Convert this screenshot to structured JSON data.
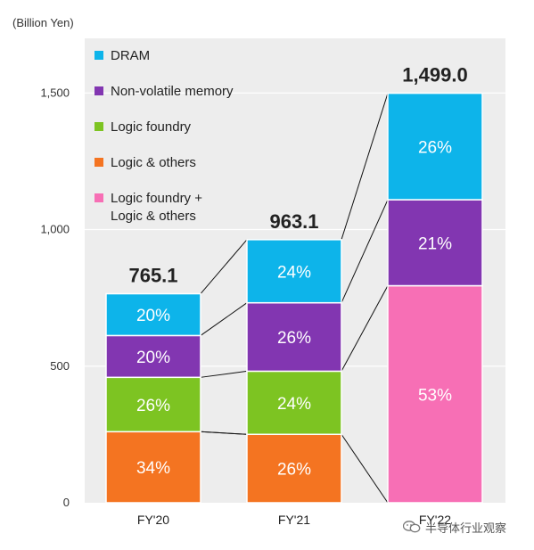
{
  "chart_data": {
    "type": "bar",
    "stacked": true,
    "unit_label": "(Billion Yen)",
    "categories": [
      "FY'20",
      "FY'21",
      "FY'22"
    ],
    "totals": [
      765.1,
      963.1,
      1499.0
    ],
    "total_labels": [
      "765.1",
      "963.1",
      "1,499.0"
    ],
    "ylim": [
      0,
      1700
    ],
    "yticks": [
      0,
      500,
      1000,
      1500
    ],
    "ytick_labels": [
      "0",
      "500",
      "1,000",
      "1,500"
    ],
    "grid": true,
    "legend_position": "top-left",
    "series": [
      {
        "name": "Logic & others",
        "color": "#F47421",
        "shares": [
          34,
          26,
          null
        ],
        "labels": [
          "34%",
          "26%",
          ""
        ]
      },
      {
        "name": "Logic foundry",
        "color": "#7DC422",
        "shares": [
          26,
          24,
          null
        ],
        "labels": [
          "26%",
          "24%",
          ""
        ]
      },
      {
        "name": "Logic foundry +\nLogic & others",
        "color": "#F76FB5",
        "shares": [
          null,
          null,
          53
        ],
        "labels": [
          "",
          "",
          "53%"
        ]
      },
      {
        "name": "Non-volatile memory",
        "color": "#8236B1",
        "shares": [
          20,
          26,
          21
        ],
        "labels": [
          "20%",
          "26%",
          "21%"
        ]
      },
      {
        "name": "DRAM",
        "color": "#0DB4EA",
        "shares": [
          20,
          24,
          26
        ],
        "labels": [
          "20%",
          "24%",
          "26%"
        ]
      }
    ],
    "legend_order": [
      "DRAM",
      "Non-volatile memory",
      "Logic foundry",
      "Logic & others",
      "Logic foundry +\nLogic & others"
    ]
  },
  "watermark": {
    "text": "半导体行业观察",
    "icon": "wechat-icon"
  }
}
